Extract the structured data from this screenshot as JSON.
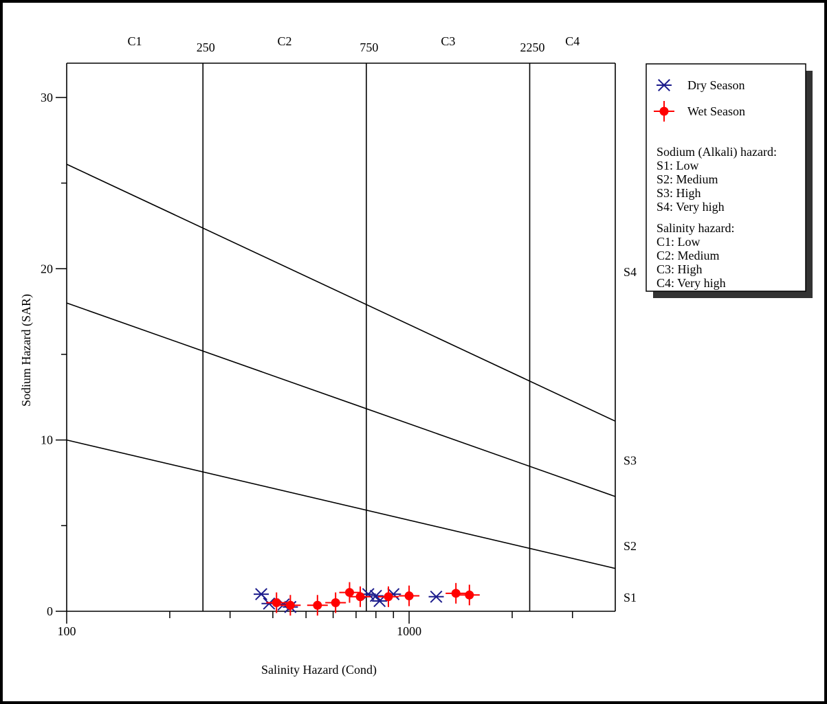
{
  "chart_data": {
    "type": "scatter",
    "xscale": "log",
    "xlim": [
      100,
      4000
    ],
    "ylim": [
      0,
      32
    ],
    "grid": false,
    "xlabel": "Salinity Hazard (Cond)",
    "ylabel": "Sodium Hazard (SAR)",
    "x_ticks": [
      {
        "value": 100,
        "label": "100"
      },
      {
        "value": 1000,
        "label": "1000"
      }
    ],
    "x_minor_ticks": [
      200,
      300,
      400,
      500,
      600,
      700,
      800,
      900,
      2000,
      3000
    ],
    "y_ticks": [
      {
        "value": 0,
        "label": "0"
      },
      {
        "value": 10,
        "label": "10"
      },
      {
        "value": 20,
        "label": "20"
      },
      {
        "value": 30,
        "label": "30"
      }
    ],
    "y_minor_ticks": [
      5,
      15,
      25
    ],
    "salinity_boundaries": [
      {
        "value": 250,
        "label": "250"
      },
      {
        "value": 750,
        "label": "750"
      },
      {
        "value": 2250,
        "label": "2250"
      }
    ],
    "salinity_zones": [
      {
        "label": "C1",
        "at": 158
      },
      {
        "label": "C2",
        "at": 433
      },
      {
        "label": "C3",
        "at": 1300
      },
      {
        "label": "C4",
        "at": 3000
      }
    ],
    "sodium_boundaries": [
      {
        "from": [
          100,
          10
        ],
        "to": [
          4000,
          2.5
        ]
      },
      {
        "from": [
          100,
          18
        ],
        "to": [
          4000,
          6.7
        ]
      },
      {
        "from": [
          100,
          26.1
        ],
        "to": [
          4000,
          11.1
        ]
      }
    ],
    "sodium_zones": [
      {
        "label": "S1",
        "y": 0.8
      },
      {
        "label": "S2",
        "y": 3.8
      },
      {
        "label": "S3",
        "y": 8.8
      },
      {
        "label": "S4",
        "y": 19.8
      }
    ],
    "series": [
      {
        "name": "Dry Season",
        "marker": "asterisk",
        "color": "#1c1c8c",
        "points": [
          [
            370,
            1.0
          ],
          [
            390,
            0.45
          ],
          [
            430,
            0.4
          ],
          [
            450,
            0.25
          ],
          [
            760,
            1.0
          ],
          [
            800,
            0.9
          ],
          [
            820,
            0.6
          ],
          [
            900,
            1.0
          ],
          [
            1200,
            0.85
          ]
        ]
      },
      {
        "name": "Wet Season",
        "marker": "filled-circle-errorbar",
        "color": "#ff0000",
        "points": [
          [
            410,
            0.5
          ],
          [
            450,
            0.35
          ],
          [
            540,
            0.35
          ],
          [
            610,
            0.5
          ],
          [
            670,
            1.1
          ],
          [
            720,
            0.85
          ],
          [
            870,
            0.85
          ],
          [
            1000,
            0.9
          ],
          [
            1370,
            1.05
          ],
          [
            1500,
            0.95
          ]
        ]
      }
    ]
  },
  "legend": {
    "series": [
      {
        "label": "Dry Season",
        "marker": "asterisk",
        "color": "#1c1c8c"
      },
      {
        "label": "Wet Season",
        "marker": "filled-circle-errorbar",
        "color": "#ff0000"
      }
    ],
    "sodium_title": "Sodium (Alkali) hazard:",
    "sodium_items": [
      "S1: Low",
      "S2: Medium",
      "S3: High",
      "S4: Very high"
    ],
    "salinity_title": "Salinity hazard:",
    "salinity_items": [
      "C1: Low",
      "C2: Medium",
      "C3: High",
      "C4: Very high"
    ]
  }
}
